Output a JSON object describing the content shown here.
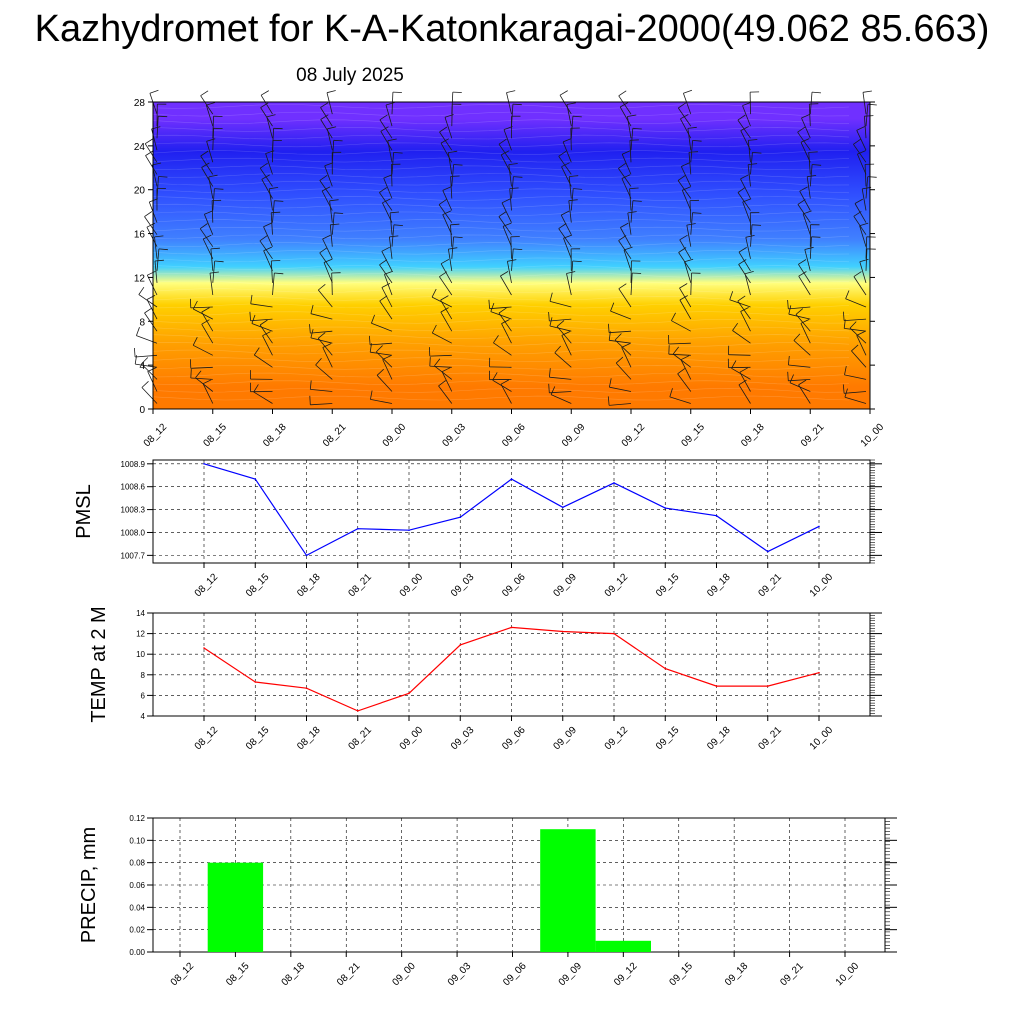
{
  "header": {
    "title": "Kazhydromet for K-A-Katonkaragai-2000(49.062 85.663)",
    "subtitle": "08 July 2025"
  },
  "colors": {
    "pmsl_line": "#0000ff",
    "temp_line": "#ff0000",
    "precip_bar": "#00ff00",
    "grid": "#000000"
  },
  "chart_data": [
    {
      "id": "cross_section",
      "type": "heatmap",
      "x": [
        "08_12",
        "08_15",
        "08_18",
        "08_21",
        "09_00",
        "09_03",
        "09_06",
        "09_09",
        "09_12",
        "09_15",
        "09_18",
        "09_21",
        "10_00"
      ],
      "yticks": [
        0,
        4,
        8,
        12,
        16,
        20,
        24,
        28
      ],
      "ylim": [
        0,
        28
      ],
      "overlay": "wind barbs",
      "color_bands": [
        {
          "from": 0,
          "to": 4,
          "color": "#ff7a00"
        },
        {
          "from": 4,
          "to": 8,
          "color": "#ffa000"
        },
        {
          "from": 8,
          "to": 11,
          "color": "#ffd000"
        },
        {
          "from": 11,
          "to": 12,
          "color": "#ffff80"
        },
        {
          "from": 12,
          "to": 14,
          "color": "#40d0ff"
        },
        {
          "from": 14,
          "to": 17,
          "color": "#4080ff"
        },
        {
          "from": 17,
          "to": 22,
          "color": "#3050ff"
        },
        {
          "from": 22,
          "to": 25,
          "color": "#2020f0"
        },
        {
          "from": 25,
          "to": 28,
          "color": "#7030ff"
        }
      ]
    },
    {
      "id": "pmsl",
      "type": "line",
      "ylabel": "PMSL",
      "x": [
        "08_12",
        "08_15",
        "08_18",
        "08_21",
        "09_00",
        "09_03",
        "09_06",
        "09_09",
        "09_12",
        "09_15",
        "09_18",
        "09_21",
        "10_00"
      ],
      "values": [
        1008.9,
        1008.7,
        1007.7,
        1008.05,
        1008.03,
        1008.2,
        1008.7,
        1008.33,
        1008.65,
        1008.32,
        1008.22,
        1007.75,
        1008.08
      ],
      "ylim": [
        1007.6,
        1008.95
      ],
      "yticks": [
        "1007.7",
        "1008.0",
        "1008.3",
        "1008.6",
        "1008.9"
      ]
    },
    {
      "id": "temp",
      "type": "line",
      "ylabel": "TEMP at 2 M",
      "x": [
        "08_12",
        "08_15",
        "08_18",
        "08_21",
        "09_00",
        "09_03",
        "09_06",
        "09_09",
        "09_12",
        "09_15",
        "09_18",
        "09_21",
        "10_00"
      ],
      "values": [
        10.6,
        7.3,
        6.7,
        4.5,
        6.2,
        10.9,
        12.6,
        12.2,
        12.0,
        8.6,
        6.9,
        6.9,
        8.2
      ],
      "ylim": [
        4,
        14
      ],
      "yticks": [
        "4",
        "6",
        "8",
        "10",
        "12",
        "14"
      ]
    },
    {
      "id": "precip",
      "type": "bar",
      "ylabel": "PRECIP, mm",
      "categories": [
        "08_12",
        "08_15",
        "08_18",
        "08_21",
        "09_00",
        "09_03",
        "09_06",
        "09_09",
        "09_12",
        "09_15",
        "09_18",
        "09_21",
        "10_00"
      ],
      "values": [
        0,
        0.08,
        0,
        0,
        0,
        0,
        0,
        0.11,
        0.01,
        0,
        0,
        0,
        0
      ],
      "ylim": [
        0,
        0.12
      ],
      "yticks": [
        "0.00",
        "0.02",
        "0.04",
        "0.06",
        "0.08",
        "0.10",
        "0.12"
      ]
    }
  ]
}
